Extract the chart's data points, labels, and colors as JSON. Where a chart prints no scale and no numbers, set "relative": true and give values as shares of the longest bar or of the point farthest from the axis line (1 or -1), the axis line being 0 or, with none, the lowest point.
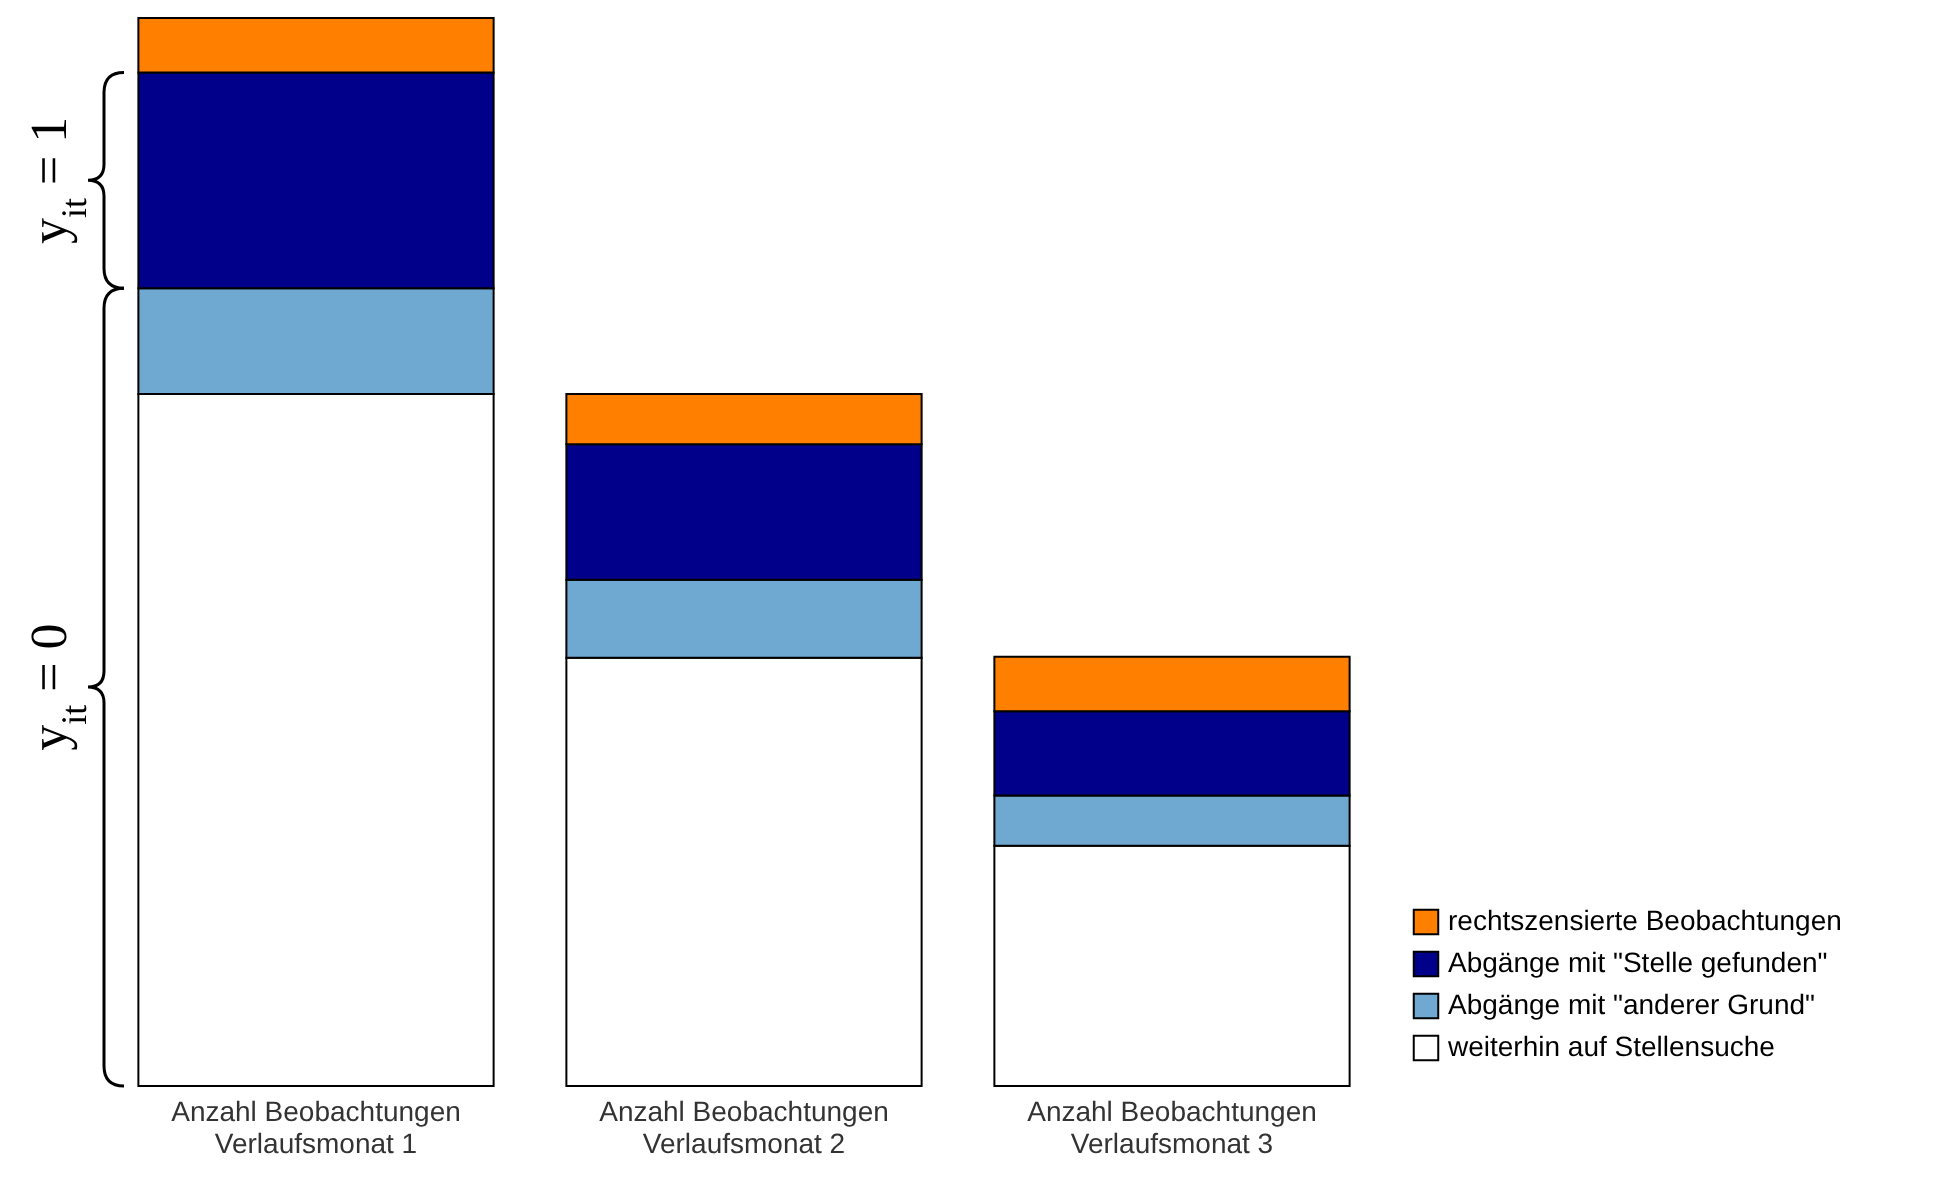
{
  "chart_data": {
    "type": "bar",
    "stacked": true,
    "relative": true,
    "categories": [
      "Anzahl Beobachtungen\nVerlaufsmonat 1",
      "Anzahl Beobachtungen\nVerlaufsmonat 2",
      "Anzahl Beobachtungen\nVerlaufsmonat 3"
    ],
    "series": [
      {
        "name": "weiterhin auf Stellensuche",
        "color": "#ffffff",
        "values": [
          0.648,
          0.401,
          0.225
        ]
      },
      {
        "name": "Abgänge mit \"anderer Grund\"",
        "color": "#6fa8d0",
        "values": [
          0.099,
          0.073,
          0.047
        ]
      },
      {
        "name": "Abgänge mit \"Stelle gefunden\"",
        "color": "#00008b",
        "values": [
          0.202,
          0.127,
          0.079
        ]
      },
      {
        "name": "rechtszensierte Beobachtungen",
        "color": "#ff8000",
        "values": [
          0.051,
          0.047,
          0.051
        ]
      }
    ],
    "legend": "bottom right",
    "annotations": [
      "y$_{it}$ = 1",
      "y$_{it}$ = 0"
    ]
  }
}
